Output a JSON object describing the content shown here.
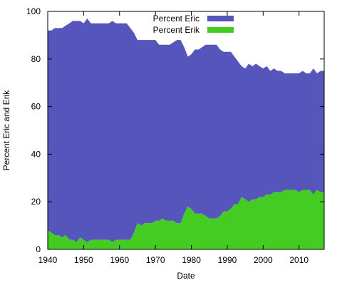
{
  "chart_data": {
    "type": "area",
    "title": "",
    "xlabel": "Date",
    "ylabel": "Percent Eric and Erik",
    "xlim": [
      1940,
      2017
    ],
    "ylim": [
      0,
      100
    ],
    "x_ticks": [
      1940,
      1950,
      1960,
      1970,
      1980,
      1990,
      2000,
      2010
    ],
    "y_ticks": [
      0,
      20,
      40,
      60,
      80,
      100
    ],
    "legend_position": "top-center",
    "grid": false,
    "stacked": true,
    "x": [
      1940,
      1941,
      1942,
      1943,
      1944,
      1945,
      1946,
      1947,
      1948,
      1949,
      1950,
      1951,
      1952,
      1953,
      1954,
      1955,
      1956,
      1957,
      1958,
      1959,
      1960,
      1961,
      1962,
      1963,
      1964,
      1965,
      1966,
      1967,
      1968,
      1969,
      1970,
      1971,
      1972,
      1973,
      1974,
      1975,
      1976,
      1977,
      1978,
      1979,
      1980,
      1981,
      1982,
      1983,
      1984,
      1985,
      1986,
      1987,
      1988,
      1989,
      1990,
      1991,
      1992,
      1993,
      1994,
      1995,
      1996,
      1997,
      1998,
      1999,
      2000,
      2001,
      2002,
      2003,
      2004,
      2005,
      2006,
      2007,
      2008,
      2009,
      2010,
      2011,
      2012,
      2013,
      2014,
      2015,
      2016,
      2017
    ],
    "series": [
      {
        "name": "Percent Eric",
        "color": "#5555bb",
        "values": [
          84,
          85,
          87,
          87,
          88,
          88,
          91,
          92,
          93,
          91,
          91,
          94,
          91,
          91,
          91,
          91,
          91,
          91,
          93,
          91,
          91,
          91,
          91,
          89,
          84,
          77,
          78,
          77,
          77,
          77,
          76,
          74,
          73,
          74,
          74,
          75,
          77,
          77,
          70,
          63,
          65,
          69,
          69,
          70,
          72,
          73,
          73,
          73,
          70,
          67,
          67,
          66,
          62,
          60,
          55,
          55,
          58,
          56,
          57,
          55,
          54,
          54,
          52,
          52,
          51,
          51,
          49,
          49,
          49,
          49,
          50,
          50,
          49,
          49,
          53,
          49,
          51,
          51
        ]
      },
      {
        "name": "Percent Erik",
        "color": "#44cc22",
        "values": [
          8,
          7,
          6,
          6,
          5,
          6,
          4,
          4,
          3,
          5,
          4,
          3,
          4,
          4,
          4,
          4,
          4,
          4,
          3,
          4,
          4,
          4,
          4,
          4,
          7,
          11,
          10,
          11,
          11,
          11,
          12,
          12,
          13,
          12,
          12,
          12,
          11,
          11,
          15,
          18,
          17,
          15,
          15,
          15,
          14,
          13,
          13,
          13,
          14,
          16,
          16,
          17,
          19,
          19,
          22,
          21,
          20,
          21,
          21,
          22,
          22,
          23,
          23,
          24,
          24,
          24,
          25,
          25,
          25,
          25,
          24,
          25,
          25,
          25,
          23,
          25,
          24,
          24
        ]
      }
    ]
  }
}
